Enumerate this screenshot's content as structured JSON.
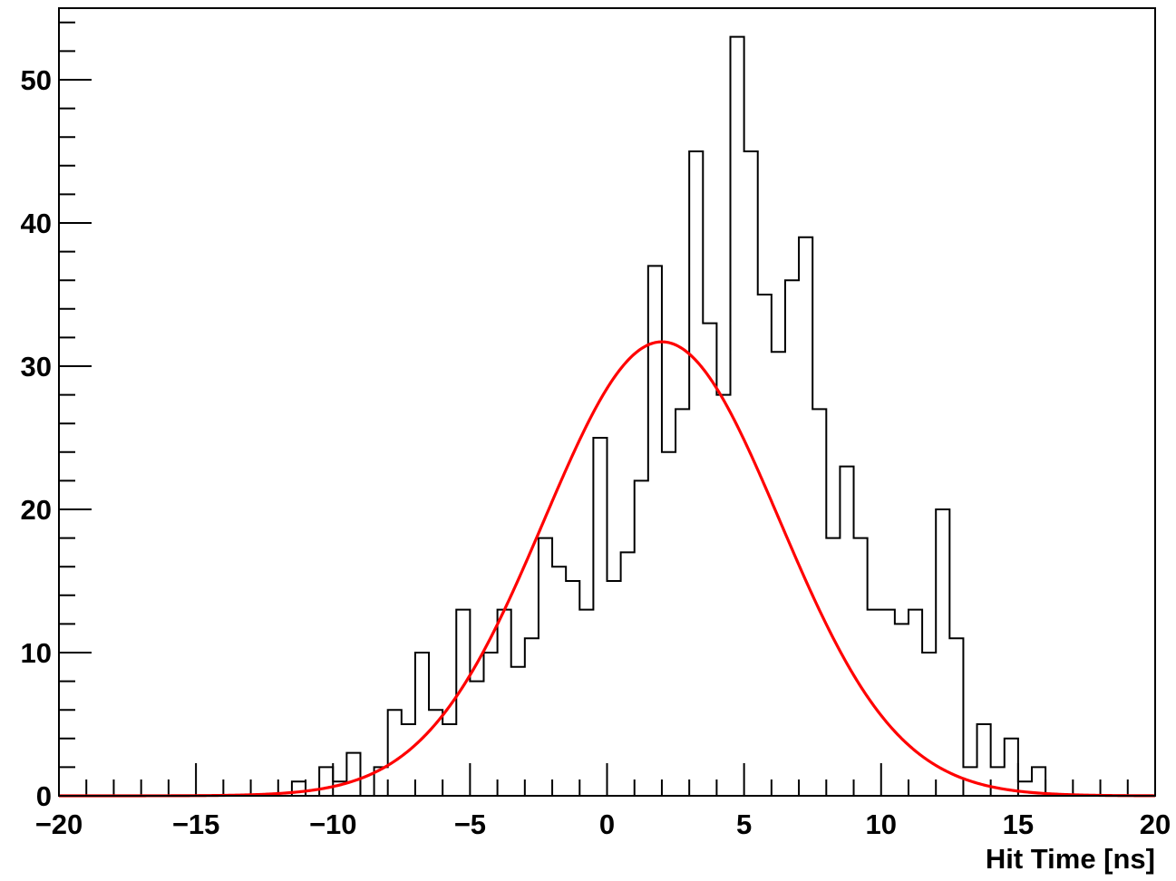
{
  "chart_data": {
    "type": "histogram",
    "xlabel": "Hit Time [ns]",
    "ylabel": "",
    "xlim": [
      -20,
      20
    ],
    "ylim": [
      0,
      55
    ],
    "x_ticks": [
      -20,
      -15,
      -10,
      -5,
      0,
      5,
      10,
      15,
      20
    ],
    "x_tick_labels": [
      "−20",
      "−15",
      "−10",
      "−5",
      "0",
      "5",
      "10",
      "15",
      "20"
    ],
    "y_ticks": [
      0,
      10,
      20,
      30,
      40,
      50
    ],
    "y_tick_labels": [
      "0",
      "10",
      "20",
      "30",
      "40",
      "50"
    ],
    "grid": false,
    "histogram": {
      "bin_width": 0.5,
      "color": "#000000",
      "bins": [
        [
          -11.5,
          1
        ],
        [
          -11.0,
          0
        ],
        [
          -10.5,
          2
        ],
        [
          -10.0,
          1
        ],
        [
          -9.5,
          3
        ],
        [
          -9.0,
          0
        ],
        [
          -8.5,
          2
        ],
        [
          -8.0,
          6
        ],
        [
          -7.5,
          5
        ],
        [
          -7.0,
          10
        ],
        [
          -6.5,
          6
        ],
        [
          -6.0,
          5
        ],
        [
          -5.5,
          13
        ],
        [
          -5.0,
          8
        ],
        [
          -4.5,
          10
        ],
        [
          -4.0,
          13
        ],
        [
          -3.5,
          9
        ],
        [
          -3.0,
          11
        ],
        [
          -2.5,
          18
        ],
        [
          -2.0,
          16
        ],
        [
          -1.5,
          15
        ],
        [
          -1.0,
          13
        ],
        [
          -0.5,
          25
        ],
        [
          0.0,
          15
        ],
        [
          0.5,
          17
        ],
        [
          1.0,
          22
        ],
        [
          1.5,
          37
        ],
        [
          2.0,
          24
        ],
        [
          2.5,
          27
        ],
        [
          3.0,
          45
        ],
        [
          3.5,
          33
        ],
        [
          4.0,
          28
        ],
        [
          4.5,
          53
        ],
        [
          5.0,
          45
        ],
        [
          5.5,
          35
        ],
        [
          6.0,
          31
        ],
        [
          6.5,
          36
        ],
        [
          7.0,
          39
        ],
        [
          7.5,
          27
        ],
        [
          8.0,
          18
        ],
        [
          8.5,
          23
        ],
        [
          9.0,
          18
        ],
        [
          9.5,
          13
        ],
        [
          10.0,
          13
        ],
        [
          10.5,
          12
        ],
        [
          11.0,
          13
        ],
        [
          11.5,
          10
        ],
        [
          12.0,
          20
        ],
        [
          12.5,
          11
        ],
        [
          13.0,
          2
        ],
        [
          13.5,
          5
        ],
        [
          14.0,
          2
        ],
        [
          14.5,
          4
        ],
        [
          15.0,
          1
        ],
        [
          15.5,
          2
        ]
      ]
    },
    "fit": {
      "function": "gaus",
      "color": "#ff0000",
      "amplitude": 31.7,
      "mean": 2.0,
      "sigma": 4.3
    }
  }
}
